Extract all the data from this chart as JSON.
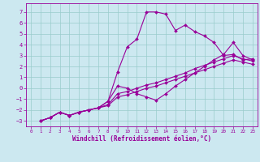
{
  "bg_color": "#cce8f0",
  "line_color": "#990099",
  "grid_color": "#99cccc",
  "xlim": [
    -0.5,
    23.5
  ],
  "ylim": [
    -3.5,
    7.8
  ],
  "xticks": [
    0,
    1,
    2,
    3,
    4,
    5,
    6,
    7,
    8,
    9,
    10,
    11,
    12,
    13,
    14,
    15,
    16,
    17,
    18,
    19,
    20,
    21,
    22,
    23
  ],
  "yticks": [
    -3,
    -2,
    -1,
    0,
    1,
    2,
    3,
    4,
    5,
    6,
    7
  ],
  "xlabel": "Windchill (Refroidissement éolien,°C)",
  "series": [
    {
      "x": [
        1,
        2,
        3,
        4,
        5,
        6,
        7,
        8,
        9,
        10,
        11,
        12,
        13,
        14,
        15,
        16,
        17,
        18,
        19,
        20,
        21,
        22,
        23
      ],
      "y": [
        -3.0,
        -2.7,
        -2.2,
        -2.5,
        -2.2,
        -2.0,
        -1.8,
        -1.2,
        1.5,
        3.8,
        4.5,
        7.0,
        7.0,
        6.8,
        5.3,
        5.8,
        5.2,
        4.8,
        4.2,
        3.0,
        3.1,
        2.6,
        2.7
      ]
    },
    {
      "x": [
        1,
        2,
        3,
        4,
        5,
        6,
        7,
        8,
        9,
        10,
        11,
        12,
        13,
        14,
        15,
        16,
        17,
        18,
        19,
        20,
        21,
        22,
        23
      ],
      "y": [
        -3.0,
        -2.7,
        -2.2,
        -2.5,
        -2.2,
        -2.0,
        -1.8,
        -1.2,
        0.2,
        0.0,
        -0.5,
        -0.8,
        -1.1,
        -0.5,
        0.2,
        0.8,
        1.4,
        2.0,
        2.6,
        3.1,
        4.2,
        3.0,
        2.6
      ]
    },
    {
      "x": [
        1,
        2,
        3,
        4,
        5,
        6,
        7,
        8,
        9,
        10,
        11,
        12,
        13,
        14,
        15,
        16,
        17,
        18,
        19,
        20,
        21,
        22,
        23
      ],
      "y": [
        -3.0,
        -2.7,
        -2.2,
        -2.5,
        -2.2,
        -2.0,
        -1.8,
        -1.5,
        -0.5,
        -0.3,
        0.0,
        0.3,
        0.5,
        0.8,
        1.1,
        1.4,
        1.8,
        2.1,
        2.4,
        2.7,
        3.0,
        2.7,
        2.5
      ]
    },
    {
      "x": [
        1,
        2,
        3,
        4,
        5,
        6,
        7,
        8,
        9,
        10,
        11,
        12,
        13,
        14,
        15,
        16,
        17,
        18,
        19,
        20,
        21,
        22,
        23
      ],
      "y": [
        -3.0,
        -2.7,
        -2.2,
        -2.5,
        -2.2,
        -2.0,
        -1.8,
        -1.6,
        -0.8,
        -0.6,
        -0.3,
        0.0,
        0.2,
        0.5,
        0.8,
        1.1,
        1.4,
        1.7,
        2.0,
        2.3,
        2.6,
        2.4,
        2.2
      ]
    }
  ],
  "marker": "D",
  "markersize": 2.0,
  "linewidth": 0.8,
  "tick_fontsize": 5.0,
  "xlabel_fontsize": 5.5
}
